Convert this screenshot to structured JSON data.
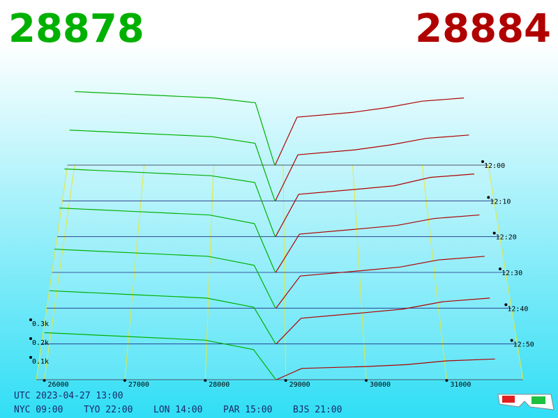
{
  "chart_data": {
    "type": "depth3d",
    "bid_price": 28878,
    "ask_price": 28884,
    "bid_color": "#00b000",
    "ask_color": "#b00000",
    "bid_prices": [
      26000,
      27000,
      28000,
      28600,
      28878
    ],
    "ask_prices": [
      28884,
      29200,
      30000,
      30500,
      31000,
      31600
    ],
    "slices": [
      {
        "time": "12:00",
        "bids": [
          460,
          440,
          420,
          390,
          0
        ],
        "asks": [
          0,
          300,
          330,
          360,
          400,
          420
        ]
      },
      {
        "time": "12:10",
        "bids": [
          430,
          410,
          390,
          350,
          0
        ],
        "asks": [
          0,
          280,
          310,
          340,
          380,
          400
        ]
      },
      {
        "time": "12:20",
        "bids": [
          400,
          380,
          360,
          320,
          0
        ],
        "asks": [
          0,
          250,
          280,
          300,
          350,
          370
        ]
      },
      {
        "time": "12:30",
        "bids": [
          370,
          350,
          330,
          280,
          0
        ],
        "asks": [
          0,
          220,
          250,
          270,
          310,
          330
        ]
      },
      {
        "time": "12:40",
        "bids": [
          330,
          310,
          290,
          240,
          0
        ],
        "asks": [
          0,
          180,
          210,
          230,
          270,
          290
        ]
      },
      {
        "time": "12:50",
        "bids": [
          290,
          270,
          250,
          200,
          0
        ],
        "asks": [
          0,
          140,
          170,
          190,
          230,
          250
        ]
      },
      {
        "time": null,
        "bids": [
          250,
          230,
          210,
          160,
          0
        ],
        "asks": [
          0,
          60,
          70,
          80,
          100,
          110
        ]
      }
    ],
    "xlim": [
      25900,
      31950
    ],
    "xticks": [
      26000,
      27000,
      28000,
      29000,
      30000,
      31000
    ],
    "yticks": [
      {
        "value": 100,
        "label": "0.1k"
      },
      {
        "value": 200,
        "label": "0.2k"
      },
      {
        "value": 300,
        "label": "0.3k"
      }
    ],
    "footer": {
      "utc": "UTC 2023-04-27 13:00",
      "zones": [
        "NYC 09:00",
        "TYO 22:00",
        "LON 14:00",
        "PAR 15:00",
        "BJS 21:00"
      ]
    }
  }
}
